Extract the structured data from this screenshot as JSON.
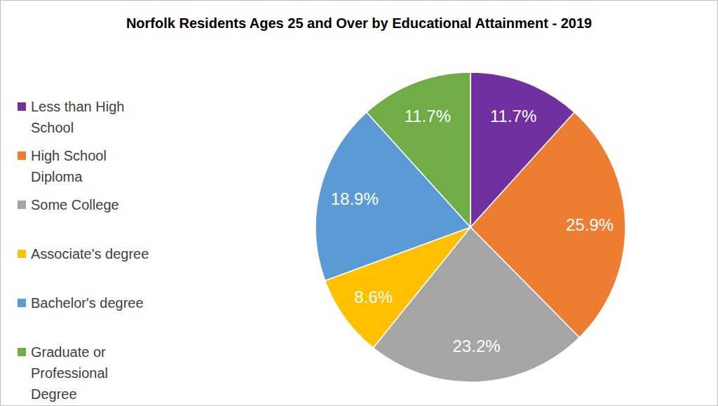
{
  "chart_data": {
    "type": "pie",
    "title": "Norfolk Residents Ages 25 and Over by Educational Attainment - 2019",
    "categories": [
      "Less than High School",
      "High School Diploma",
      "Some College",
      "Associate's degree",
      "Bachelor's degree",
      "Graduate or Professional Degree"
    ],
    "values": [
      11.7,
      25.9,
      23.2,
      8.6,
      18.9,
      11.7
    ],
    "value_labels": [
      "11.7%",
      "25.9%",
      "23.2%",
      "8.6%",
      "18.9%",
      "11.7%"
    ],
    "colors": [
      "#7030a0",
      "#ed7d31",
      "#a5a5a5",
      "#ffc000",
      "#5b9bd5",
      "#70ad47"
    ],
    "data_labels": true,
    "legend": "left"
  }
}
